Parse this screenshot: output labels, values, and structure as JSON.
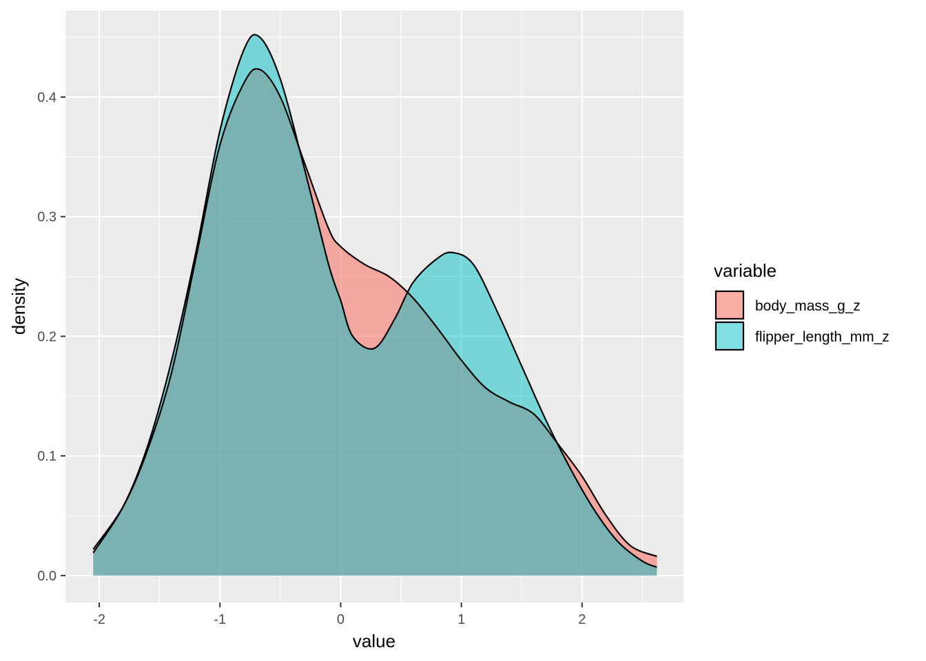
{
  "chart_data": {
    "type": "area",
    "xlabel": "value",
    "ylabel": "density",
    "xlim": [
      -2.28,
      2.84
    ],
    "ylim": [
      -0.0225,
      0.4725
    ],
    "x_ticks": [
      -2,
      -1,
      0,
      1,
      2
    ],
    "x_tick_labels": [
      "-2",
      "-1",
      "0",
      "1",
      "2"
    ],
    "y_ticks": [
      0.0,
      0.1,
      0.2,
      0.3,
      0.4
    ],
    "y_tick_labels": [
      "0.0",
      "0.1",
      "0.2",
      "0.3",
      "0.4"
    ],
    "grid": true,
    "legend": {
      "title": "variable",
      "placement": "right",
      "entries": [
        "body_mass_g_z",
        "flipper_length_mm_z"
      ]
    },
    "series": [
      {
        "name": "body_mass_g_z",
        "color": "#F8766D",
        "fill_opacity": 0.6,
        "x": [
          -2.05,
          -1.8,
          -1.6,
          -1.4,
          -1.2,
          -1.0,
          -0.8,
          -0.67,
          -0.5,
          -0.3,
          -0.1,
          0.0,
          0.2,
          0.4,
          0.6,
          0.8,
          1.0,
          1.2,
          1.4,
          1.6,
          1.8,
          2.0,
          2.2,
          2.4,
          2.62
        ],
        "y": [
          0.022,
          0.058,
          0.105,
          0.17,
          0.265,
          0.36,
          0.412,
          0.423,
          0.4,
          0.345,
          0.29,
          0.275,
          0.26,
          0.25,
          0.232,
          0.207,
          0.18,
          0.157,
          0.145,
          0.135,
          0.11,
          0.083,
          0.05,
          0.025,
          0.016
        ]
      },
      {
        "name": "flipper_length_mm_z",
        "color": "#00BFC4",
        "fill_opacity": 0.5,
        "x": [
          -2.05,
          -1.8,
          -1.6,
          -1.4,
          -1.2,
          -1.0,
          -0.8,
          -0.67,
          -0.5,
          -0.3,
          -0.1,
          0.0,
          0.1,
          0.28,
          0.45,
          0.6,
          0.8,
          0.93,
          1.1,
          1.3,
          1.5,
          1.7,
          1.9,
          2.1,
          2.3,
          2.5,
          2.62
        ],
        "y": [
          0.019,
          0.058,
          0.108,
          0.18,
          0.27,
          0.372,
          0.44,
          0.45,
          0.415,
          0.34,
          0.26,
          0.23,
          0.2,
          0.19,
          0.215,
          0.245,
          0.265,
          0.27,
          0.26,
          0.22,
          0.175,
          0.13,
          0.09,
          0.055,
          0.028,
          0.012,
          0.007
        ]
      }
    ]
  }
}
